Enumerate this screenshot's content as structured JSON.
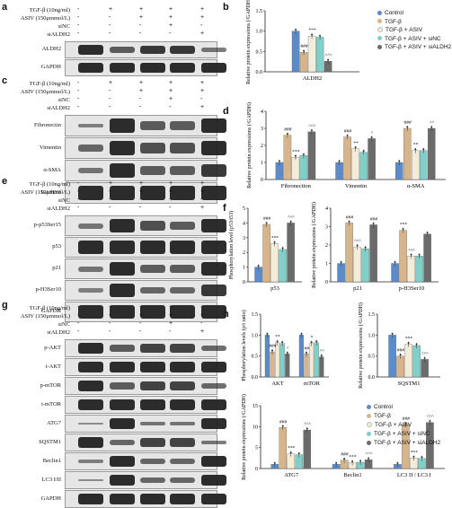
{
  "panel_letters": [
    "a",
    "b",
    "c",
    "d",
    "e",
    "f",
    "g",
    "h"
  ],
  "treatments": {
    "tgf": "TGF-β (10ng/ml)",
    "asiv": "ASIV (150μmmol/L)",
    "sinc": "siNC",
    "sialdh2": "siALDH2",
    "signs": {
      "tgf": [
        "-",
        "+",
        "+",
        "+",
        "+"
      ],
      "asiv": [
        "-",
        "-",
        "+",
        "+",
        "+"
      ],
      "sinc": [
        "-",
        "-",
        "-",
        "+",
        "-"
      ],
      "sialdh2": [
        "-",
        "-",
        "-",
        "-",
        "+"
      ]
    }
  },
  "blots": {
    "a": [
      "ALDH2",
      "GAPDH"
    ],
    "c": [
      "Fibronectin",
      "Vimentin",
      "α-SMA",
      "GAPDH"
    ],
    "e": [
      "p-p53Ser15",
      "p53",
      "p21",
      "p-H3Ser10",
      "GAPDH"
    ],
    "g": [
      "p-AKT",
      "t-AKT",
      "p-mTOR",
      "t-mTOR",
      "ATG7",
      "SQSTM1",
      "Beclin1",
      "LC3 I/II",
      "GAPDH"
    ]
  },
  "legend": {
    "items": [
      "Control",
      "TGF-β",
      "TGF-β + ASIV",
      "TGF-β + ASIV + siNC",
      "TGF-β + ASIV + siALDH2"
    ],
    "colors": [
      "#5b8bc9",
      "#d7b48a",
      "#f2ecd9",
      "#7fd0c8",
      "#6b6b6b"
    ]
  },
  "chart_data": [
    {
      "panel": "b",
      "type": "bar",
      "ylabel": "Relative protein expressions (/GAPDH)",
      "categories": [
        "ALDH2"
      ],
      "ylim": [
        0,
        1.5
      ],
      "yticks": [
        "0.0",
        "0.5",
        "1.0",
        "1.5"
      ],
      "series_values": [
        [
          1.0
        ],
        [
          0.48
        ],
        [
          0.88
        ],
        [
          0.85
        ],
        [
          0.26
        ]
      ],
      "annotations": [
        "###",
        "***",
        "^^^"
      ]
    },
    {
      "panel": "d",
      "type": "bar",
      "ylabel": "Relative protein expressions (/GAPDH)",
      "categories": [
        "Fibronection",
        "Vimentin",
        "α-SMA"
      ],
      "ylim": [
        0,
        4
      ],
      "yticks": [
        "0",
        "1",
        "2",
        "3",
        "4"
      ],
      "series_values": [
        [
          1.0,
          1.0,
          1.0
        ],
        [
          2.6,
          2.5,
          3.0
        ],
        [
          1.3,
          1.8,
          1.7
        ],
        [
          1.4,
          1.6,
          1.7
        ],
        [
          2.8,
          2.4,
          3.0
        ]
      ],
      "annotations": [
        "###",
        "***",
        "^^^",
        "###",
        "**",
        "^",
        "###",
        "**",
        "^^"
      ]
    },
    {
      "panel": "f1",
      "type": "bar",
      "ylabel": "Phosphorylation level (p53/t53)",
      "categories": [
        "p53"
      ],
      "ylim": [
        0,
        5
      ],
      "yticks": [
        "0",
        "1",
        "2",
        "3",
        "4",
        "5"
      ],
      "series_values": [
        [
          1.0
        ],
        [
          3.9
        ],
        [
          2.6
        ],
        [
          2.2
        ],
        [
          4.0
        ]
      ],
      "annotations": [
        "###",
        "***",
        "^^^"
      ]
    },
    {
      "panel": "f2",
      "type": "bar",
      "ylabel": "Relative protein expressions (/GAPDH)",
      "categories": [
        "p21",
        "p-H3Ser10"
      ],
      "ylim": [
        0,
        4
      ],
      "yticks": [
        "0",
        "1",
        "2",
        "3",
        "4"
      ],
      "series_values": [
        [
          1.0,
          1.0
        ],
        [
          3.2,
          2.8
        ],
        [
          1.9,
          1.4
        ],
        [
          1.8,
          1.4
        ],
        [
          3.1,
          2.6
        ]
      ],
      "annotations": [
        "###",
        "^^^",
        "###",
        "***",
        "^^^"
      ]
    },
    {
      "panel": "h1",
      "type": "bar",
      "ylabel": "Phosphorylation levels (p/t ratio)",
      "categories": [
        "AKT",
        "mTOR"
      ],
      "ylim": [
        0,
        1.5
      ],
      "yticks": [
        "0.0",
        "0.5",
        "1.0",
        "1.5"
      ],
      "series_values": [
        [
          1.0,
          1.0
        ],
        [
          0.6,
          0.55
        ],
        [
          0.82,
          0.8
        ],
        [
          0.8,
          0.82
        ],
        [
          0.55,
          0.48
        ]
      ],
      "annotations": [
        "###",
        "**",
        "^",
        "##",
        "*",
        "^^"
      ]
    },
    {
      "panel": "h2",
      "type": "bar",
      "ylabel": "Relative protein expressions (/GAPDH)",
      "categories": [
        "SQSTM1"
      ],
      "ylim": [
        0,
        1.5
      ],
      "yticks": [
        "0.0",
        "0.5",
        "1.0",
        "1.5"
      ],
      "series_values": [
        [
          1.0
        ],
        [
          0.5
        ],
        [
          0.78
        ],
        [
          0.75
        ],
        [
          0.42
        ]
      ],
      "annotations": [
        "###",
        "***",
        "^^^"
      ]
    },
    {
      "panel": "h3",
      "type": "bar",
      "ylabel": "Relative protein expressions (/GAPDH)",
      "categories": [
        "ATG7",
        "Beclin1",
        "LC3 II / LC3 I"
      ],
      "ylim": [
        0,
        15
      ],
      "yticks": [
        "0",
        "5",
        "10",
        "15"
      ],
      "series_values": [
        [
          1.0,
          1.0,
          1.0
        ],
        [
          9.8,
          2.0,
          10.5
        ],
        [
          3.5,
          1.4,
          2.5
        ],
        [
          3.3,
          1.5,
          2.4
        ],
        [
          9.2,
          2.1,
          11.0
        ]
      ],
      "annotations": [
        "###",
        "***",
        "^^^",
        "###",
        "***",
        "^^^",
        "###",
        "***",
        "^^^"
      ]
    }
  ]
}
